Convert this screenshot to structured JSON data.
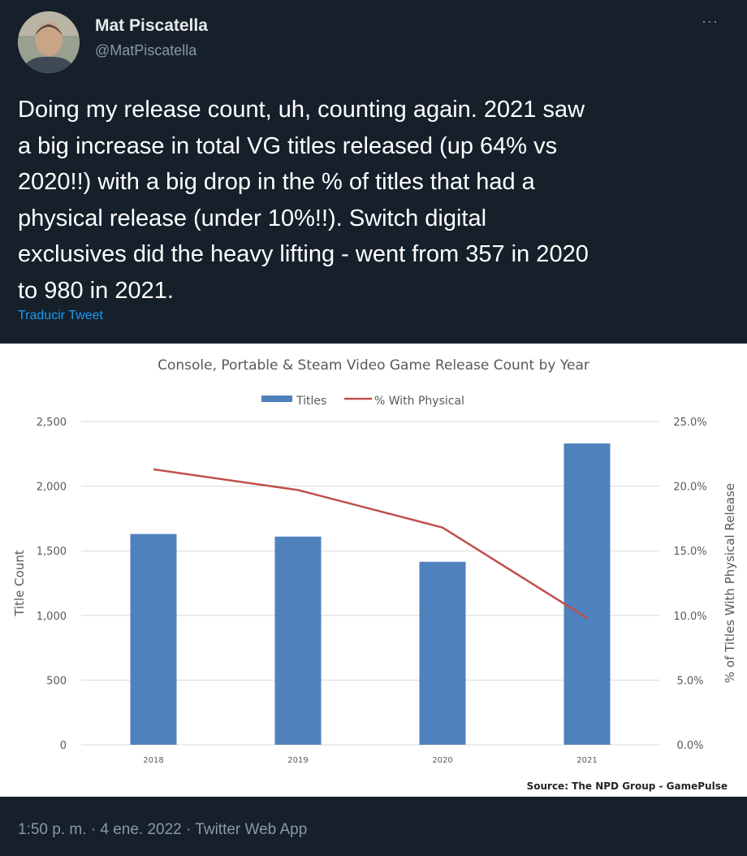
{
  "tweet": {
    "display_name": "Mat Piscatella",
    "handle": "@MatPiscatella",
    "more_label": "···",
    "text_lines": [
      "Doing my release count, uh, counting again. 2021 saw",
      "a big increase in total VG titles released (up 64% vs",
      "2020!!) with a big drop in the % of titles that had a",
      "physical release (under 10%!!). Switch digital",
      "exclusives did the heavy lifting - went from 357 in 2020",
      "to 980 in 2021."
    ],
    "translate_label": "Traducir Tweet",
    "timestamp": "1:50 p. m. · 4 ene. 2022 · Twitter Web App"
  },
  "colors": {
    "background": "#15202b",
    "link": "#1d9bf0",
    "bar": "#4f81bd",
    "line": "#c0504d"
  },
  "chart_data": {
    "type": "bar",
    "title": "Console, Portable & Steam Video Game Release Count by Year",
    "categories": [
      "2018",
      "2019",
      "2020",
      "2021"
    ],
    "series": [
      {
        "name": "Titles",
        "type": "bar",
        "axis": "left",
        "values": [
          1630,
          1610,
          1415,
          2330
        ]
      },
      {
        "name": "% With Physical",
        "type": "line",
        "axis": "right",
        "values": [
          21.3,
          19.7,
          16.8,
          9.8
        ]
      }
    ],
    "ylabel": "Title Count",
    "ylabel_right": "% of Titles With Physical Release",
    "ylim": [
      0,
      2500
    ],
    "ylim_right": [
      0,
      25
    ],
    "yticks": [
      "0",
      "500",
      "1,000",
      "1,500",
      "2,000",
      "2,500"
    ],
    "yticks_right": [
      "0.0%",
      "5.0%",
      "10.0%",
      "15.0%",
      "20.0%",
      "25.0%"
    ],
    "legend": [
      "Titles",
      "% With Physical"
    ],
    "legend_position": "top",
    "source": "Source: The NPD Group - GamePulse"
  }
}
